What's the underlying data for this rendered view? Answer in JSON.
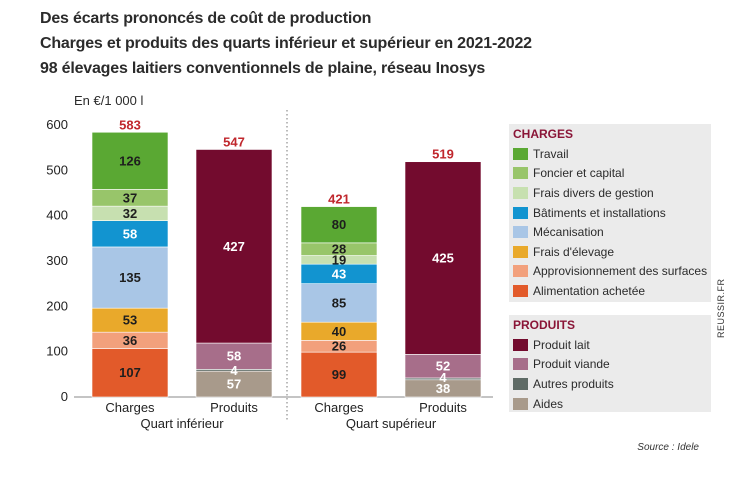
{
  "titles": [
    "Des écarts prononcés de coût de production",
    "Charges et produits des quarts inférieur et supérieur en 2021-2022",
    "98 élevages laitiers conventionnels de plaine, réseau Inosys"
  ],
  "unit_label": "En €/1 000 l",
  "source": "Source : Idele",
  "watermark": "REUSSIR.FR",
  "chart_data": {
    "type": "bar",
    "stacked": true,
    "title": "Charges et produits des quarts inférieur et supérieur en 2021-2022",
    "ylabel": "En €/1 000 l",
    "ylim": [
      0,
      600
    ],
    "yticks": [
      0,
      100,
      200,
      300,
      400,
      500,
      600
    ],
    "categories": [
      "Charges",
      "Produits",
      "Charges",
      "Produits"
    ],
    "groups": [
      {
        "label": "Quart inférieur",
        "bars": [
          0,
          1
        ]
      },
      {
        "label": "Quart supérieur",
        "bars": [
          2,
          3
        ]
      }
    ],
    "totals": [
      "583",
      "547",
      "421",
      "519"
    ],
    "total_color": "#c0272d",
    "legend": {
      "charges_title": "CHARGES",
      "produits_title": "PRODUITS",
      "title_color": "#8a1537"
    },
    "bars": [
      {
        "stack": [
          {
            "series": "Alimentation achetée",
            "value": 107,
            "label": "107"
          },
          {
            "series": "Approvisionnement des surfaces",
            "value": 36,
            "label": "36"
          },
          {
            "series": "Frais d'élevage",
            "value": 53,
            "label": "53"
          },
          {
            "series": "Mécanisation",
            "value": 135,
            "label": "135"
          },
          {
            "series": "Bâtiments et installations",
            "value": 58,
            "label": "58"
          },
          {
            "series": "Frais divers de gestion",
            "value": 32,
            "label": "32"
          },
          {
            "series": "Foncier et capital",
            "value": 37,
            "label": "37"
          },
          {
            "series": "Travail",
            "value": 126,
            "label": "126"
          }
        ]
      },
      {
        "stack": [
          {
            "series": "Aides",
            "value": 57,
            "label": "57"
          },
          {
            "series": "Autres produits",
            "value": 4,
            "label": "4"
          },
          {
            "series": "Produit viande",
            "value": 58,
            "label": "58"
          },
          {
            "series": "Produit lait",
            "value": 427,
            "label": "427"
          }
        ]
      },
      {
        "stack": [
          {
            "series": "Alimentation achetée",
            "value": 99,
            "label": "99"
          },
          {
            "series": "Approvisionnement des surfaces",
            "value": 26,
            "label": "26"
          },
          {
            "series": "Frais d'élevage",
            "value": 40,
            "label": "40"
          },
          {
            "series": "Mécanisation",
            "value": 85,
            "label": "85"
          },
          {
            "series": "Bâtiments et installations",
            "value": 43,
            "label": "43"
          },
          {
            "series": "Frais divers de gestion",
            "value": 19,
            "label": "19"
          },
          {
            "series": "Foncier et capital",
            "value": 28,
            "label": "28"
          },
          {
            "series": "Travail",
            "value": 80,
            "label": "80"
          }
        ]
      },
      {
        "stack": [
          {
            "series": "Aides",
            "value": 38,
            "label": "38"
          },
          {
            "series": "Autres produits",
            "value": 4,
            "label": "4"
          },
          {
            "series": "Produit viande",
            "value": 52,
            "label": "52"
          },
          {
            "series": "Produit lait",
            "value": 425,
            "label": "425"
          }
        ]
      }
    ],
    "series": [
      {
        "name": "Travail",
        "group": "charges",
        "color": "#5aa833",
        "label_color": "#1e1e1e"
      },
      {
        "name": "Foncier et capital",
        "group": "charges",
        "color": "#98c56a",
        "label_color": "#1e1e1e"
      },
      {
        "name": "Frais divers de gestion",
        "group": "charges",
        "color": "#c7e0b0",
        "label_color": "#1e1e1e"
      },
      {
        "name": "Bâtiments et installations",
        "group": "charges",
        "color": "#1294d0",
        "label_color": "#ffffff"
      },
      {
        "name": "Mécanisation",
        "group": "charges",
        "color": "#a9c6e6",
        "label_color": "#1e1e1e"
      },
      {
        "name": "Frais d'élevage",
        "group": "charges",
        "color": "#e9a92b",
        "label_color": "#1e1e1e"
      },
      {
        "name": "Approvisionnement des surfaces",
        "group": "charges",
        "color": "#f2a07c",
        "label_color": "#1e1e1e"
      },
      {
        "name": "Alimentation achetée",
        "group": "charges",
        "color": "#e25a2a",
        "label_color": "#1e1e1e"
      },
      {
        "name": "Produit lait",
        "group": "produits",
        "color": "#730b2e",
        "label_color": "#ffffff"
      },
      {
        "name": "Produit viande",
        "group": "produits",
        "color": "#a76e8a",
        "label_color": "#ffffff"
      },
      {
        "name": "Autres produits",
        "group": "produits",
        "color": "#5f6b66",
        "label_color": "#ffffff"
      },
      {
        "name": "Aides",
        "group": "produits",
        "color": "#a89a8b",
        "label_color": "#ffffff"
      }
    ]
  }
}
